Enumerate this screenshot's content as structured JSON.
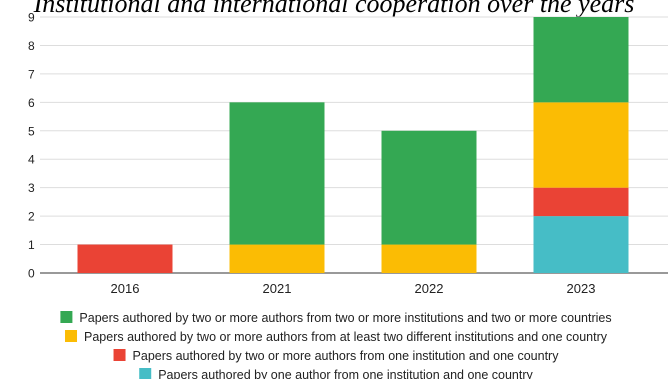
{
  "chart_data": {
    "type": "bar",
    "stacked": true,
    "title": "Institutional and international cooperation over the years",
    "xlabel": "",
    "ylabel": "",
    "categories": [
      "2016",
      "2021",
      "2022",
      "2023"
    ],
    "ylim": [
      0,
      9
    ],
    "yticks": [
      "0",
      "1",
      "2",
      "3",
      "4",
      "5",
      "6",
      "7",
      "8",
      "9"
    ],
    "grid": true,
    "legend_position": "bottom",
    "series": [
      {
        "name": "Papers authored by one author from one institution and one country",
        "color": "#46bdc6",
        "values": [
          0,
          0,
          0,
          2
        ]
      },
      {
        "name": "Papers authored by two or more authors from one institution and one country",
        "color": "#ea4335",
        "values": [
          1,
          0,
          0,
          1
        ]
      },
      {
        "name": "Papers authored by two or more authors from at least two different institutions and one country",
        "color": "#fbbc04",
        "values": [
          0,
          1,
          1,
          3
        ]
      },
      {
        "name": "Papers authored by two or more authors from two or more institutions and two or more countries",
        "color": "#34a853",
        "values": [
          0,
          5,
          4,
          3
        ]
      }
    ],
    "legend_order": [
      3,
      2,
      1,
      0
    ]
  }
}
